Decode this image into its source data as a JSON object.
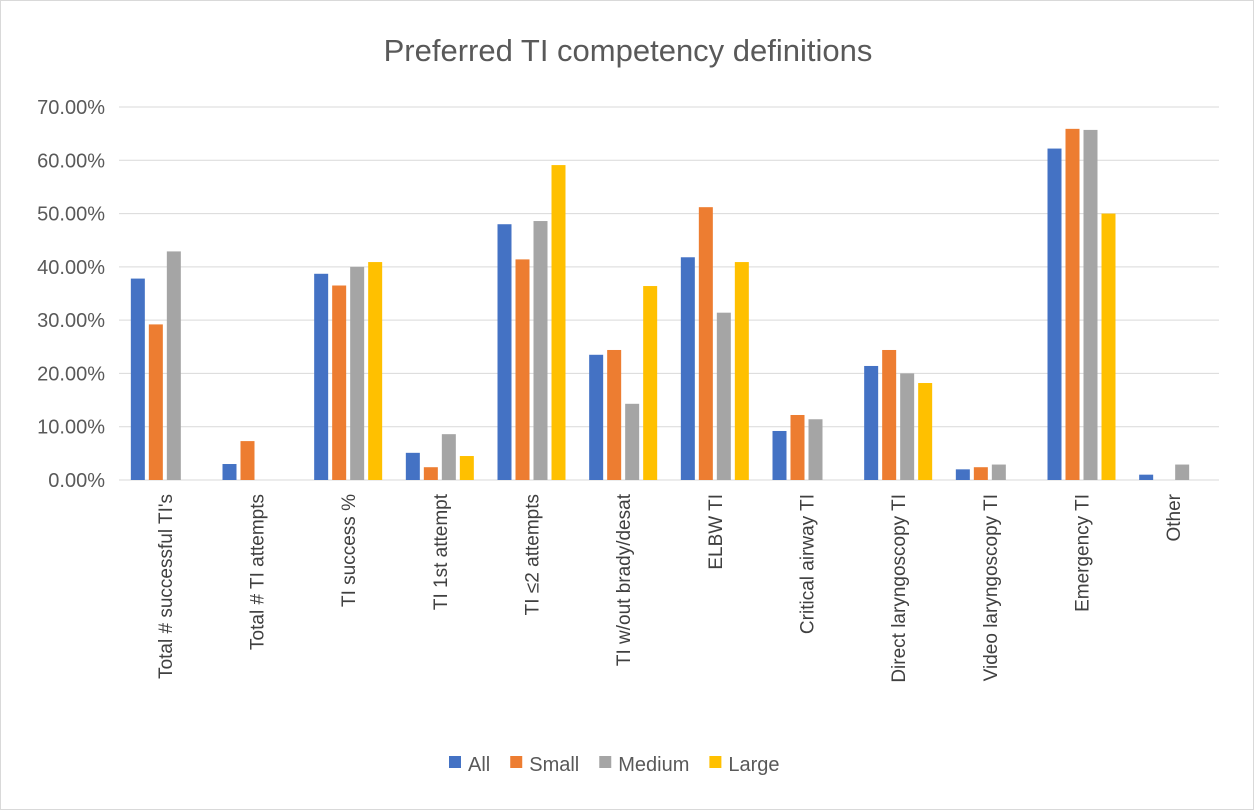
{
  "chart_data": {
    "type": "bar",
    "title": "Preferred TI competency definitions",
    "xlabel": "",
    "ylabel": "",
    "ylim": [
      0,
      0.7
    ],
    "ytick_step": 0.1,
    "ytick_labels": [
      "0.00%",
      "10.00%",
      "20.00%",
      "30.00%",
      "40.00%",
      "50.00%",
      "60.00%",
      "70.00%"
    ],
    "grid": true,
    "legend_position": "bottom",
    "categories": [
      "Total # successful TI's",
      "Total # TI attempts",
      "TI success %",
      "TI 1st attempt",
      "TI ≤2 attempts",
      "TI w/out brady/desat",
      "ELBW TI",
      "Critical airway TI",
      "Direct laryngoscopy TI",
      "Video laryngoscopy TI",
      "Emergency TI",
      "Other"
    ],
    "series": [
      {
        "name": "All",
        "color": "#4472C4",
        "values": [
          0.378,
          0.03,
          0.387,
          0.051,
          0.48,
          0.235,
          0.418,
          0.092,
          0.214,
          0.02,
          0.622,
          0.01
        ]
      },
      {
        "name": "Small",
        "color": "#ED7D31",
        "values": [
          0.292,
          0.073,
          0.365,
          0.024,
          0.414,
          0.244,
          0.512,
          0.122,
          0.244,
          0.024,
          0.659,
          0.0
        ]
      },
      {
        "name": "Medium",
        "color": "#A5A5A5",
        "values": [
          0.429,
          0.0,
          0.4,
          0.086,
          0.486,
          0.143,
          0.314,
          0.114,
          0.2,
          0.029,
          0.657,
          0.029
        ]
      },
      {
        "name": "Large",
        "color": "#FFC000",
        "values": [
          0.0,
          0.0,
          0.409,
          0.045,
          0.591,
          0.364,
          0.409,
          0.0,
          0.182,
          0.0,
          0.5,
          0.0
        ]
      }
    ]
  }
}
